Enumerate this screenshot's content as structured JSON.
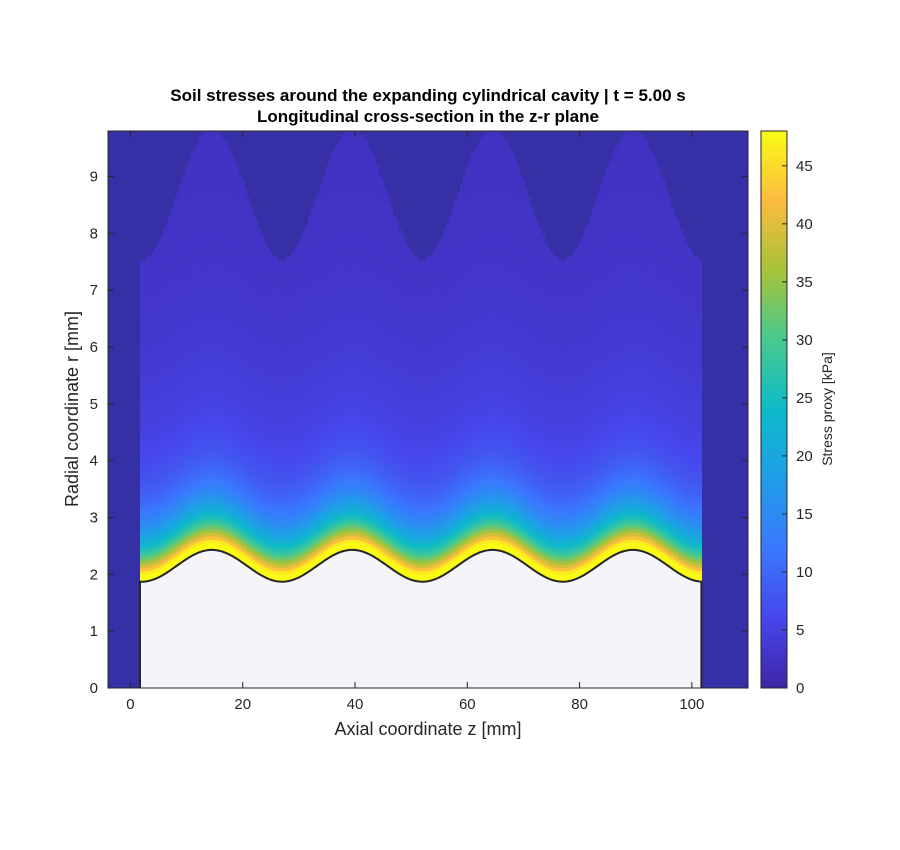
{
  "chart_data": {
    "type": "heatmap",
    "title": "Soil stresses around the expanding cylindrical cavity | t = 5.00 s",
    "subtitle": "Longitudinal cross-section in the z-r plane",
    "xlabel": "Axial coordinate z [mm]",
    "ylabel": "Radial coordinate r [mm]",
    "xlim": [
      -4,
      110
    ],
    "ylim": [
      0,
      9.8
    ],
    "x_ticks": [
      0,
      20,
      40,
      60,
      80,
      100
    ],
    "y_ticks": [
      0,
      1,
      2,
      3,
      4,
      5,
      6,
      7,
      8,
      9
    ],
    "grid": false,
    "domain_z": [
      1.7,
      101.7
    ],
    "cavity_boundary": {
      "base_radius_mm": 2.15,
      "amplitude_mm": 0.28,
      "wavelength_mm": 25,
      "crest_z": [
        14.5,
        39.5,
        64.5,
        89.5
      ],
      "trough_z": [
        29.5,
        54.5,
        79.5
      ],
      "crest_r": 2.43,
      "trough_r": 1.87,
      "edge_r": 1.92
    },
    "outer_stress_front": {
      "mean_radius_mm": 8.65,
      "amplitude_mm": 1.15,
      "peak_z": [
        14.5,
        39.5,
        64.5,
        89.5
      ],
      "peak_r": 9.8,
      "valley_r": 7.5,
      "edge_r": 7.65
    },
    "colorbar": {
      "label": "Stress proxy [kPa]",
      "min": 0,
      "max": 48,
      "ticks": [
        0,
        5,
        10,
        15,
        20,
        25,
        30,
        35,
        40,
        45
      ]
    },
    "colors": {
      "background_field": "#3530a6",
      "cavity_fill": "#f4f4f9",
      "boundary_line": "#262626"
    }
  }
}
